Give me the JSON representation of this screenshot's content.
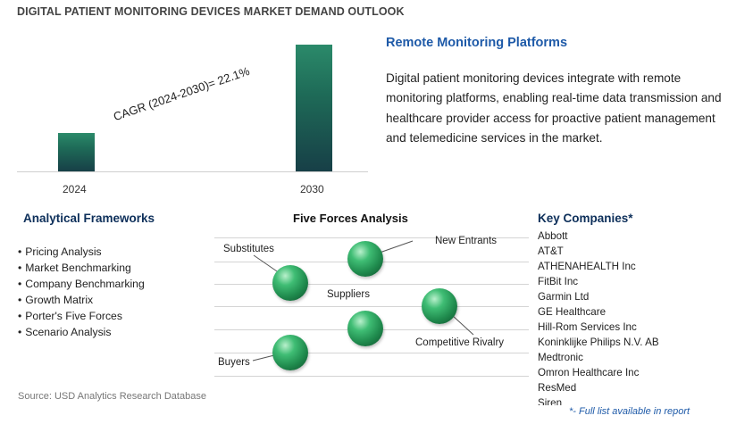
{
  "title": "DIGITAL PATIENT MONITORING DEVICES MARKET DEMAND OUTLOOK",
  "chart_data": {
    "type": "bar",
    "categories": [
      "2024",
      "2030"
    ],
    "values": [
      1,
      3.31
    ],
    "annotation": "CAGR (2024-2030)=   22.1%",
    "ylim": [
      0,
      3.5
    ]
  },
  "remote_monitoring": {
    "title": "Remote Monitoring Platforms",
    "description": "Digital patient monitoring devices integrate with remote monitoring platforms, enabling real-time data transmission and healthcare provider access for proactive patient management and telemedicine services in the market."
  },
  "analytical_frameworks": {
    "title": "Analytical Frameworks",
    "items": [
      "Pricing Analysis",
      "Market Benchmarking",
      "Company Benchmarking",
      "Growth Matrix",
      "Porter's Five Forces",
      "Scenario Analysis"
    ]
  },
  "five_forces": {
    "title": "Five Forces Analysis",
    "labels": {
      "substitutes": "Substitutes",
      "new_entrants": "New Entrants",
      "suppliers": "Suppliers",
      "competitive_rivalry": "Competitive Rivalry",
      "buyers": "Buyers"
    }
  },
  "key_companies": {
    "title": "Key Companies*",
    "items": [
      "Abbott",
      "AT&T",
      "ATHENAHEALTH Inc",
      "FitBit Inc",
      "Garmin Ltd",
      "GE Healthcare",
      "Hill-Rom Services Inc",
      "Koninklijke Philips N.V. AB",
      "Medtronic",
      "Omron Healthcare Inc",
      "ResMed",
      "Siren"
    ],
    "note": "*- Full list available in report"
  },
  "source": "Source: USD Analytics Research Database"
}
